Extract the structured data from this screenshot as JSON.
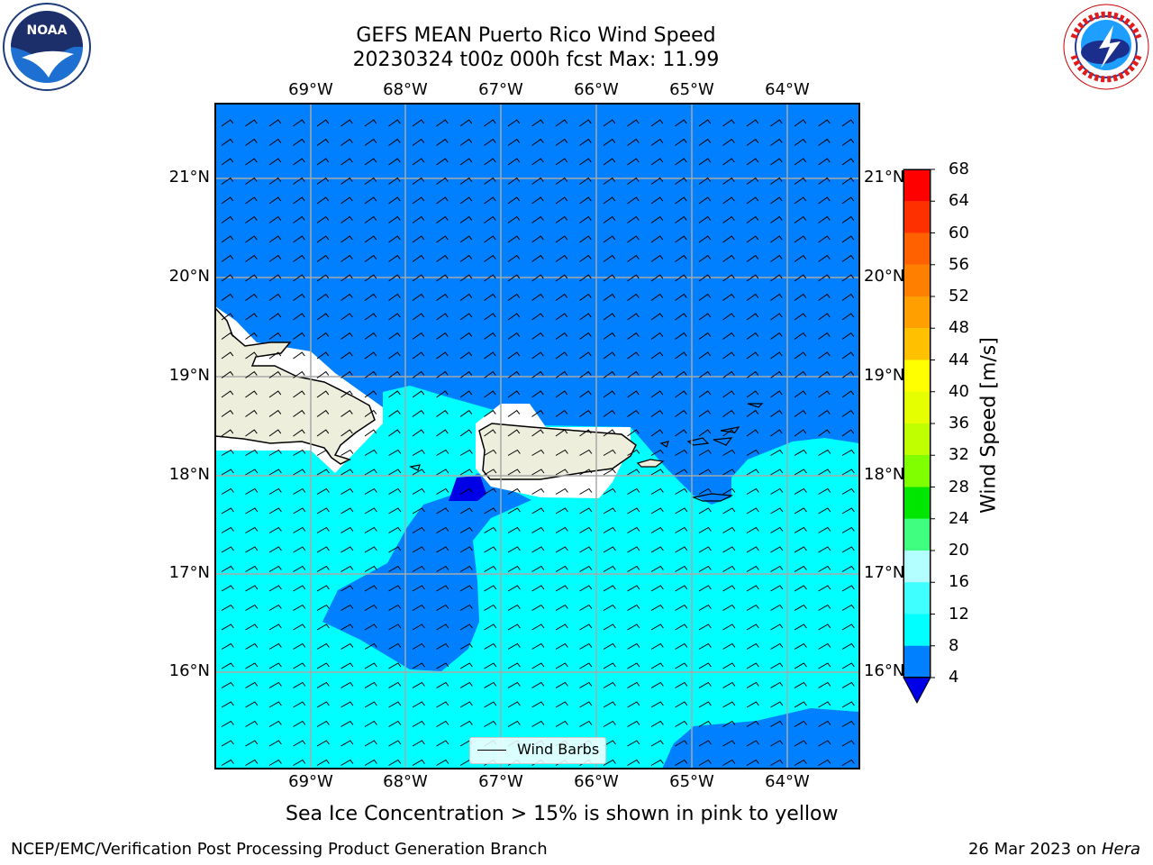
{
  "header": {
    "title_line1": "GEFS MEAN Puerto Rico Wind Speed",
    "title_line2": "20230324 t00z 000h fcst   Max: 11.99"
  },
  "logos": {
    "left": {
      "icon": "noaa-logo-icon",
      "text": "NOAA"
    },
    "right": {
      "icon": "national-weather-service-logo-icon"
    }
  },
  "map": {
    "lon_ticks": [
      "69°W",
      "68°W",
      "67°W",
      "66°W",
      "65°W",
      "64°W"
    ],
    "lat_ticks": [
      "21°N",
      "20°N",
      "19°N",
      "18°N",
      "17°N",
      "16°N"
    ],
    "legend": {
      "label": "Wind Barbs"
    },
    "colors": {
      "level_4_8": "#0080ff",
      "level_8_12": "#00ffff",
      "below_4": "#0000e6",
      "land": "#eeeedd"
    }
  },
  "colorbar": {
    "label": "Wind Speed [m/s]",
    "ticks": [
      "68",
      "64",
      "60",
      "56",
      "52",
      "48",
      "44",
      "40",
      "36",
      "32",
      "28",
      "24",
      "20",
      "16",
      "12",
      "8",
      "4"
    ],
    "colors": [
      "#0080ff",
      "#00ffff",
      "#40ffff",
      "#80ffff",
      "#b3ffff",
      "#40ff80",
      "#00ff40",
      "#00e600",
      "#40e600",
      "#80ff00",
      "#c0ff00",
      "#e6ff00",
      "#ffff00",
      "#ffff00",
      "#ffe000",
      "#ffc000",
      "#ffa000",
      "#ff8000",
      "#ff6000",
      "#ff4000",
      "#ff2000",
      "#ff0000",
      "#e60000"
    ]
  },
  "caption": "Sea Ice Concentration > 15% is shown in pink to yellow",
  "footer": {
    "left": "NCEP/EMC/Verification Post Processing Product Generation Branch",
    "right_date": "26 Mar 2023 on ",
    "right_machine": "Hera"
  }
}
